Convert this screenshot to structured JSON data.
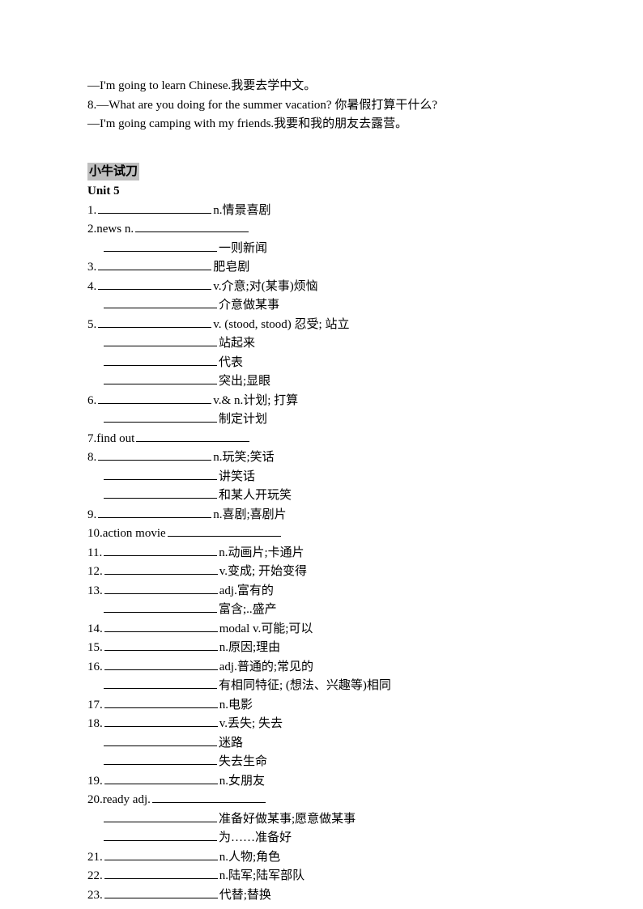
{
  "intro": [
    "—I'm going to learn Chinese.我要去学中文。",
    "8.—What are you doing for the summer vacation?  你暑假打算干什么?",
    "—I'm going camping with my friends.我要和我的朋友去露营。"
  ],
  "section_title": "小牛试刀",
  "unit_label": "Unit 5",
  "blank_widths": {
    "standard": 140,
    "short": 120
  },
  "items": [
    {
      "num": "1.",
      "prefix": "",
      "blank": 140,
      "text": " n.情景喜剧",
      "subs": []
    },
    {
      "num": "2.",
      "prefix": " news n. ",
      "blank": 140,
      "text": "",
      "subs": [
        {
          "blank": 140,
          "text": "一则新闻"
        }
      ]
    },
    {
      "num": "3.",
      "prefix": "",
      "blank": 140,
      "text": "肥皂剧",
      "subs": []
    },
    {
      "num": "4.",
      "prefix": "",
      "blank": 140,
      "text": " v.介意;对(某事)烦恼",
      "subs": [
        {
          "blank": 140,
          "text": "介意做某事"
        }
      ]
    },
    {
      "num": "5.",
      "prefix": "",
      "blank": 140,
      "text": " v. (stood, stood)  忍受;  站立",
      "subs": [
        {
          "blank": 140,
          "text": "站起来"
        },
        {
          "blank": 140,
          "text": "代表"
        },
        {
          "blank": 140,
          "text": "突出;显眼"
        }
      ]
    },
    {
      "num": "6.",
      "prefix": "",
      "blank": 140,
      "text": " v.& n.计划;  打算",
      "subs": [
        {
          "blank": 140,
          "text": " 制定计划"
        }
      ]
    },
    {
      "num": "7.",
      "prefix": " find out ",
      "blank": 140,
      "text": "",
      "subs": []
    },
    {
      "num": "8.",
      "prefix": "",
      "blank": 140,
      "text": "n.玩笑;笑话",
      "subs": [
        {
          "blank": 140,
          "text": "讲笑话"
        },
        {
          "blank": 140,
          "text": "和某人开玩笑"
        }
      ]
    },
    {
      "num": "9.",
      "prefix": "",
      "blank": 140,
      "text": " n.喜剧;喜剧片",
      "subs": []
    },
    {
      "num": "10.",
      "prefix": " action movie ",
      "blank": 140,
      "text": "",
      "subs": []
    },
    {
      "num": "11.",
      "prefix": "",
      "blank": 140,
      "text": " n.动画片;卡通片",
      "subs": []
    },
    {
      "num": "12.",
      "prefix": "",
      "blank": 140,
      "text": " v.变成;  开始变得",
      "subs": []
    },
    {
      "num": "13.",
      "prefix": "",
      "blank": 140,
      "text": " adj.富有的",
      "subs": [
        {
          "blank": 140,
          "text": "富含;..盛产"
        }
      ]
    },
    {
      "num": "14.",
      "prefix": "",
      "blank": 140,
      "text": " modal v.可能;可以",
      "subs": []
    },
    {
      "num": "15.",
      "prefix": "",
      "blank": 140,
      "text": " n.原因;理由",
      "subs": []
    },
    {
      "num": "16.",
      "prefix": "",
      "blank": 140,
      "text": " adj.普通的;常见的",
      "subs": [
        {
          "blank": 140,
          "text": "有相同特征; (想法、兴趣等)相同"
        }
      ]
    },
    {
      "num": "17.",
      "prefix": "",
      "blank": 140,
      "text": " n.电影",
      "subs": []
    },
    {
      "num": "18.",
      "prefix": "",
      "blank": 140,
      "text": " v.丢失;  失去",
      "subs": [
        {
          "blank": 140,
          "text": "迷路"
        },
        {
          "blank": 140,
          "text": "失去生命"
        }
      ]
    },
    {
      "num": "19.",
      "prefix": "",
      "blank": 140,
      "text": " n.女朋友",
      "subs": []
    },
    {
      "num": "20.",
      "prefix": " ready adj. ",
      "blank": 140,
      "text": "",
      "subs": [
        {
          "blank": 140,
          "text": "准备好做某事;愿意做某事"
        },
        {
          "blank": 140,
          "text": "为……准备好"
        }
      ]
    },
    {
      "num": "21.",
      "prefix": "",
      "blank": 140,
      "text": " n.人物;角色",
      "subs": []
    },
    {
      "num": "22.",
      "prefix": "",
      "blank": 140,
      "text": " n.陆军;陆军部队",
      "subs": []
    },
    {
      "num": "23.",
      "prefix": "",
      "blank": 140,
      "text": "代替;替换",
      "subs": []
    }
  ]
}
